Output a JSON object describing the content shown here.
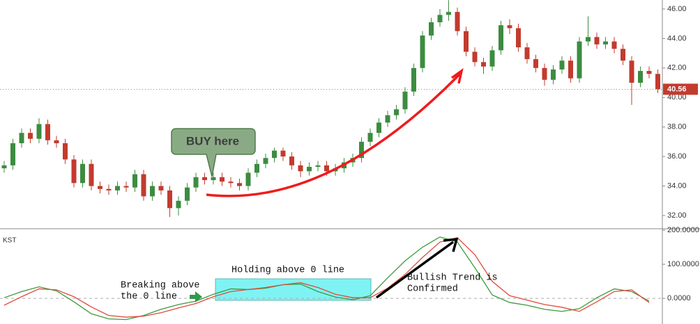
{
  "chart_data": [
    {
      "type": "candlestick",
      "open": [
        35.2,
        35.4,
        36.9,
        37.6,
        37.2,
        38.2,
        37.1,
        36.9,
        35.8,
        34.2,
        35.5,
        34.0,
        33.8,
        33.7,
        34.0,
        33.9,
        34.8,
        33.3,
        34.0,
        33.7,
        32.5,
        33.0,
        33.9,
        34.6,
        34.4,
        34.6,
        34.3,
        34.2,
        34.0,
        34.9,
        35.5,
        35.9,
        36.4,
        36.0,
        35.4,
        35.0,
        35.3,
        35.4,
        35.0,
        35.2,
        35.6,
        35.9,
        37.0,
        37.6,
        38.3,
        38.8,
        39.2,
        40.4,
        42.0,
        44.2,
        45.1,
        45.6,
        45.8,
        44.5,
        43.1,
        42.4,
        42.1,
        43.2,
        44.9,
        44.7,
        43.4,
        42.6,
        42.0,
        41.2,
        41.9,
        42.5,
        41.3,
        43.8,
        44.1,
        43.6,
        43.8,
        43.3,
        42.5,
        41.0,
        41.8,
        41.6
      ],
      "high": [
        35.7,
        37.2,
        37.9,
        37.9,
        38.6,
        38.5,
        37.4,
        37.2,
        36.1,
        35.8,
        35.8,
        34.3,
        34.1,
        34.3,
        34.3,
        35.1,
        35.1,
        34.3,
        34.3,
        34.0,
        33.3,
        34.2,
        34.9,
        34.9,
        34.9,
        34.9,
        34.6,
        34.5,
        35.2,
        35.8,
        36.2,
        36.6,
        36.6,
        36.3,
        35.7,
        35.6,
        35.7,
        35.7,
        35.5,
        35.9,
        36.2,
        37.3,
        37.9,
        38.6,
        39.1,
        39.5,
        40.7,
        42.3,
        44.5,
        45.4,
        46.0,
        46.6,
        46.1,
        44.8,
        43.4,
        42.7,
        43.5,
        45.2,
        45.3,
        45.0,
        43.7,
        42.9,
        42.3,
        42.2,
        42.8,
        42.8,
        44.1,
        45.5,
        44.4,
        44.1,
        44.1,
        43.6,
        42.8,
        42.1,
        42.1,
        41.9
      ],
      "low": [
        34.9,
        35.1,
        36.6,
        36.9,
        36.9,
        36.8,
        36.6,
        35.5,
        33.9,
        33.9,
        33.7,
        33.5,
        33.4,
        33.4,
        33.6,
        33.6,
        33.0,
        33.0,
        33.4,
        31.9,
        32.0,
        32.7,
        33.6,
        34.1,
        34.1,
        34.0,
        33.9,
        33.7,
        33.7,
        34.6,
        35.2,
        35.6,
        35.7,
        35.1,
        34.6,
        34.7,
        35.0,
        34.7,
        34.7,
        34.9,
        35.3,
        35.6,
        36.7,
        37.3,
        38.0,
        38.5,
        38.9,
        40.1,
        41.7,
        43.9,
        44.8,
        45.2,
        44.2,
        42.8,
        42.1,
        41.6,
        41.8,
        42.9,
        44.3,
        43.1,
        42.3,
        41.7,
        40.8,
        40.9,
        41.6,
        41.0,
        41.0,
        43.5,
        43.3,
        43.3,
        43.0,
        42.2,
        39.5,
        40.7,
        41.3,
        40.3
      ],
      "close": [
        35.4,
        36.9,
        37.6,
        37.2,
        38.2,
        37.1,
        36.9,
        35.8,
        34.2,
        35.5,
        34.0,
        33.8,
        33.7,
        34.0,
        33.9,
        34.8,
        33.3,
        34.0,
        33.7,
        32.5,
        33.0,
        33.9,
        34.6,
        34.4,
        34.6,
        34.3,
        34.2,
        34.0,
        34.9,
        35.5,
        35.9,
        36.4,
        36.0,
        35.4,
        35.0,
        35.3,
        35.4,
        35.0,
        35.2,
        35.6,
        35.9,
        37.0,
        37.6,
        38.3,
        38.8,
        39.2,
        40.4,
        42.0,
        44.2,
        45.1,
        45.6,
        45.8,
        44.5,
        43.1,
        42.4,
        42.1,
        43.2,
        44.9,
        44.7,
        43.4,
        42.6,
        42.0,
        41.2,
        41.9,
        42.5,
        41.3,
        43.8,
        44.1,
        43.6,
        43.8,
        43.3,
        42.5,
        41.0,
        41.8,
        41.6,
        40.56
      ],
      "up_color": "#3c8c40",
      "down_color": "#c23b2e",
      "ylim": [
        31.15,
        46.61
      ],
      "yticks": [
        {
          "value": 32,
          "label": "32.00"
        },
        {
          "value": 34,
          "label": "34.00"
        },
        {
          "value": 36,
          "label": "36.00"
        },
        {
          "value": 38,
          "label": "38.00"
        },
        {
          "value": 40,
          "label": "40.00"
        },
        {
          "value": 42,
          "label": "42.00"
        },
        {
          "value": 44,
          "label": "44.00"
        },
        {
          "value": 46,
          "label": "46.00"
        }
      ],
      "annotations": [
        "BUY here"
      ]
    },
    {
      "type": "line",
      "title": "KST",
      "x": [
        0,
        2,
        4,
        6,
        8,
        10,
        12,
        14,
        16,
        18,
        20,
        22,
        24,
        26,
        28,
        30,
        32,
        34,
        36,
        38,
        40,
        42,
        44,
        46,
        48,
        50,
        52,
        54,
        56,
        58,
        60,
        62,
        64,
        66,
        68,
        70,
        72,
        74
      ],
      "series": [
        {
          "color": "#3c9a3c",
          "values": [
            2,
            20,
            34,
            22,
            -10,
            -45,
            -60,
            -62,
            -50,
            -32,
            -18,
            -8,
            12,
            28,
            26,
            30,
            40,
            42,
            20,
            4,
            -4,
            8,
            60,
            110,
            150,
            180,
            165,
            90,
            10,
            -12,
            -20,
            -32,
            -38,
            -30,
            2,
            28,
            20,
            -8
          ]
        },
        {
          "color": "#e04b3c",
          "values": [
            -20,
            5,
            28,
            25,
            5,
            -25,
            -50,
            -55,
            -52,
            -42,
            -28,
            -15,
            5,
            20,
            26,
            32,
            40,
            46,
            32,
            12,
            2,
            2,
            30,
            70,
            120,
            165,
            178,
            128,
            50,
            8,
            -5,
            -18,
            -26,
            -38,
            -10,
            20,
            25,
            -12
          ]
        }
      ],
      "ylim": [
        -75,
        202
      ],
      "yticks": [
        {
          "value": 0,
          "label": "0.0000"
        },
        {
          "value": 100,
          "label": "100.0000"
        },
        {
          "value": 200,
          "label": "200.0000"
        }
      ],
      "annotations": [
        [
          "Breaking above",
          "the 0 line"
        ],
        [
          "Holding above 0 line"
        ],
        [
          "Bullish Trend is",
          "Confirmed"
        ]
      ]
    }
  ]
}
